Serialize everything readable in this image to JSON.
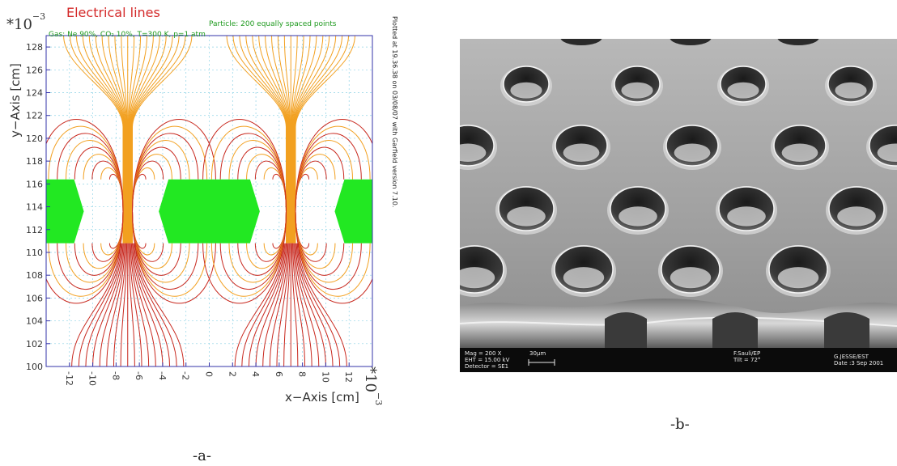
{
  "figure": {
    "panel_a": {
      "title": "Electrical lines",
      "gas_info": "Gas: Ne 90%, CO₂ 10%, T=300 K, p=1 atm",
      "particle_info": "Particle: 200 equally spaced points",
      "plotted_info": "Plotted at 19.36.38 on 03/08/07 with Garfield version 7.10.",
      "y_exponent_base": "*10",
      "y_exponent_power": "−3",
      "x_exponent_base": "*10",
      "x_exponent_power": "−3",
      "caption": "-a-",
      "colors": {
        "title": "#d42a2a",
        "electrode": "#22e822",
        "field_red": "#c8281e",
        "field_orange": "#f2a020",
        "grid": "#8fd3e6",
        "frame": "#3333aa"
      }
    },
    "panel_b": {
      "caption": "-b-",
      "sem": {
        "mag": "Mag =  200 X",
        "eht": "EHT = 15.00 kV",
        "detector": "Detector = SE1",
        "scale": "30µm",
        "operator": "F.Sauli/EP",
        "tilt": "Tilt = 72°",
        "author": "G.JESSE/EST",
        "date": "Date :3 Sep 2001"
      }
    }
  },
  "chart_data": {
    "type": "line",
    "title": "Electrical lines",
    "xlabel": "x−Axis [cm]",
    "ylabel": "y−Axis [cm]",
    "xlim": [
      -14,
      14
    ],
    "ylim": [
      100,
      129
    ],
    "x_ticks": [
      -12,
      -10,
      -8,
      -6,
      -4,
      -2,
      0,
      2,
      4,
      6,
      8,
      10,
      12
    ],
    "y_ticks": [
      100,
      102,
      104,
      106,
      108,
      110,
      112,
      114,
      116,
      118,
      120,
      122,
      124,
      126,
      128
    ],
    "grid": true,
    "hole_centers_x": [
      -7,
      7
    ],
    "electrode_y_range": [
      110.8,
      116.4
    ]
  }
}
